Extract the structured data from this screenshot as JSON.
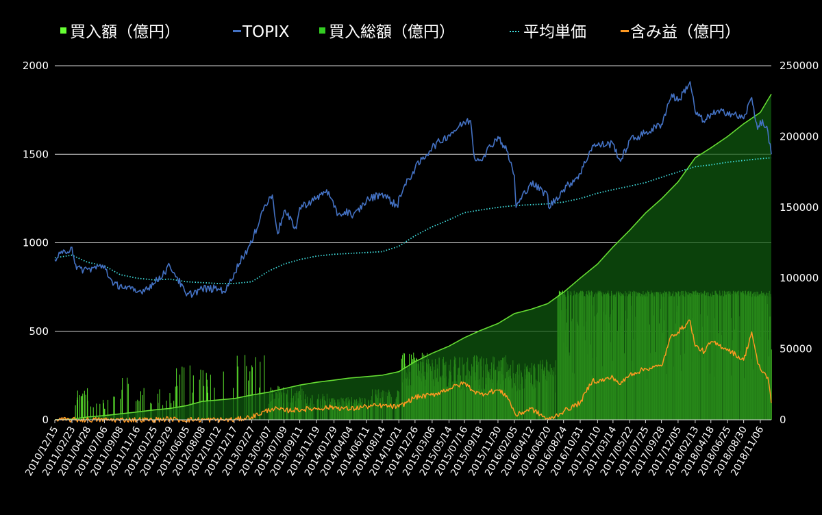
{
  "chart_data": {
    "type": "bar+line+area",
    "legend_position": "top",
    "grid": true,
    "legend": [
      {
        "key": "daily",
        "label": "買入額（億円）",
        "marker": "square",
        "color": "#66ff33"
      },
      {
        "key": "topix",
        "label": "TOPIX",
        "marker": "dash",
        "color": "#4472c4"
      },
      {
        "key": "total",
        "label": "買入総額（億円）",
        "marker": "square",
        "color": "#33cc22"
      },
      {
        "key": "avg",
        "label": "平均単価",
        "marker": "dots",
        "color": "#40e0e0"
      },
      {
        "key": "gain",
        "label": "含み益（億円）",
        "marker": "dash",
        "color": "#ff9922"
      }
    ],
    "y_left": {
      "min": 0,
      "max": 2000,
      "ticks": [
        "0",
        "500",
        "1000",
        "1500",
        "2000"
      ]
    },
    "y_right": {
      "min": 0,
      "max": 250000,
      "ticks": [
        "0",
        "50000",
        "100000",
        "150000",
        "200000",
        "250000"
      ]
    },
    "x_range": [
      "2010/12/15",
      "2018/12/21"
    ],
    "x_ticks": [
      "2010/12/15",
      "2011/02/23",
      "2011/04/28",
      "2011/07/06",
      "2011/09/08",
      "2011/11/16",
      "2012/01/25",
      "2012/03/29",
      "2012/06/05",
      "2012/08/08",
      "2012/10/12",
      "2012/12/17",
      "2013/02/27",
      "2013/05/07",
      "2013/07/09",
      "2013/09/11",
      "2013/11/19",
      "2014/01/29",
      "2014/04/04",
      "2014/06/11",
      "2014/08/14",
      "2014/10/21",
      "2014/12/26",
      "2015/03/06",
      "2015/05/14",
      "2015/07/16",
      "2015/09/18",
      "2015/11/30",
      "2016/02/05",
      "2016/04/12",
      "2016/06/20",
      "2016/08/24",
      "2016/10/31",
      "2017/01/10",
      "2017/03/14",
      "2017/05/22",
      "2017/07/25",
      "2017/09/28",
      "2017/12/05",
      "2018/02/13",
      "2018/04/18",
      "2018/06/25",
      "2018/08/30",
      "2018/11/06"
    ],
    "topix": [
      [
        "2010/12/15",
        905
      ],
      [
        "2011/01/15",
        940
      ],
      [
        "2011/02/23",
        975
      ],
      [
        "2011/03/14",
        850
      ],
      [
        "2011/04/28",
        850
      ],
      [
        "2011/07/06",
        870
      ],
      [
        "2011/08/10",
        760
      ],
      [
        "2011/09/08",
        760
      ],
      [
        "2011/11/16",
        720
      ],
      [
        "2011/12/20",
        740
      ],
      [
        "2012/01/25",
        770
      ],
      [
        "2012/03/29",
        870
      ],
      [
        "2012/04/30",
        800
      ],
      [
        "2012/06/05",
        700
      ],
      [
        "2012/08/08",
        740
      ],
      [
        "2012/10/12",
        740
      ],
      [
        "2012/11/14",
        730
      ],
      [
        "2012/12/17",
        830
      ],
      [
        "2013/01/20",
        920
      ],
      [
        "2013/02/27",
        1000
      ],
      [
        "2013/04/10",
        1180
      ],
      [
        "2013/05/22",
        1270
      ],
      [
        "2013/06/13",
        1050
      ],
      [
        "2013/07/09",
        1180
      ],
      [
        "2013/08/28",
        1080
      ],
      [
        "2013/09/11",
        1200
      ],
      [
        "2013/11/19",
        1250
      ],
      [
        "2013/12/30",
        1300
      ],
      [
        "2014/01/29",
        1200
      ],
      [
        "2014/02/15",
        1160
      ],
      [
        "2014/04/04",
        1180
      ],
      [
        "2014/04/14",
        1140
      ],
      [
        "2014/06/11",
        1240
      ],
      [
        "2014/08/14",
        1280
      ],
      [
        "2014/10/17",
        1200
      ],
      [
        "2014/10/21",
        1260
      ],
      [
        "2014/12/26",
        1420
      ],
      [
        "2015/03/06",
        1540
      ],
      [
        "2015/05/14",
        1610
      ],
      [
        "2015/07/16",
        1680
      ],
      [
        "2015/08/10",
        1690
      ],
      [
        "2015/08/26",
        1480
      ],
      [
        "2015/09/18",
        1470
      ],
      [
        "2015/11/30",
        1600
      ],
      [
        "2016/01/05",
        1520
      ],
      [
        "2016/02/05",
        1380
      ],
      [
        "2016/02/12",
        1200
      ],
      [
        "2016/04/12",
        1340
      ],
      [
        "2016/06/20",
        1270
      ],
      [
        "2016/06/24",
        1200
      ],
      [
        "2016/08/24",
        1300
      ],
      [
        "2016/10/31",
        1390
      ],
      [
        "2016/12/20",
        1550
      ],
      [
        "2017/01/10",
        1550
      ],
      [
        "2017/03/14",
        1560
      ],
      [
        "2017/04/14",
        1460
      ],
      [
        "2017/05/22",
        1580
      ],
      [
        "2017/07/25",
        1620
      ],
      [
        "2017/09/28",
        1670
      ],
      [
        "2017/11/09",
        1840
      ],
      [
        "2017/12/05",
        1800
      ],
      [
        "2018/01/23",
        1910
      ],
      [
        "2018/02/13",
        1740
      ],
      [
        "2018/03/23",
        1680
      ],
      [
        "2018/04/18",
        1730
      ],
      [
        "2018/06/25",
        1740
      ],
      [
        "2018/08/30",
        1700
      ],
      [
        "2018/10/02",
        1820
      ],
      [
        "2018/10/26",
        1640
      ],
      [
        "2018/11/06",
        1690
      ],
      [
        "2018/12/07",
        1630
      ],
      [
        "2018/12/21",
        1500
      ]
    ],
    "avg_price": [
      [
        "2010/12/15",
        915
      ],
      [
        "2011/02/23",
        930
      ],
      [
        "2011/04/28",
        890
      ],
      [
        "2011/07/06",
        870
      ],
      [
        "2011/09/08",
        820
      ],
      [
        "2011/11/16",
        800
      ],
      [
        "2012/01/25",
        790
      ],
      [
        "2012/03/29",
        795
      ],
      [
        "2012/06/05",
        780
      ],
      [
        "2012/08/08",
        775
      ],
      [
        "2012/10/12",
        770
      ],
      [
        "2012/12/17",
        770
      ],
      [
        "2013/02/27",
        780
      ],
      [
        "2013/05/07",
        840
      ],
      [
        "2013/07/09",
        880
      ],
      [
        "2013/09/11",
        905
      ],
      [
        "2013/11/19",
        925
      ],
      [
        "2014/01/29",
        935
      ],
      [
        "2014/04/04",
        940
      ],
      [
        "2014/06/11",
        945
      ],
      [
        "2014/08/14",
        950
      ],
      [
        "2014/10/21",
        980
      ],
      [
        "2014/12/26",
        1040
      ],
      [
        "2015/03/06",
        1090
      ],
      [
        "2015/05/14",
        1130
      ],
      [
        "2015/07/16",
        1170
      ],
      [
        "2015/09/18",
        1185
      ],
      [
        "2015/11/30",
        1200
      ],
      [
        "2016/02/05",
        1210
      ],
      [
        "2016/04/12",
        1215
      ],
      [
        "2016/06/20",
        1220
      ],
      [
        "2016/08/24",
        1230
      ],
      [
        "2016/10/31",
        1250
      ],
      [
        "2017/01/10",
        1280
      ],
      [
        "2017/03/14",
        1300
      ],
      [
        "2017/05/22",
        1320
      ],
      [
        "2017/07/25",
        1340
      ],
      [
        "2017/09/28",
        1370
      ],
      [
        "2017/12/05",
        1400
      ],
      [
        "2018/02/13",
        1430
      ],
      [
        "2018/04/18",
        1440
      ],
      [
        "2018/06/25",
        1455
      ],
      [
        "2018/08/30",
        1465
      ],
      [
        "2018/11/06",
        1475
      ],
      [
        "2018/12/21",
        1480
      ]
    ],
    "total_purchases": [
      [
        "2010/12/15",
        0
      ],
      [
        "2011/02/23",
        500
      ],
      [
        "2011/04/28",
        2000
      ],
      [
        "2011/07/06",
        3000
      ],
      [
        "2011/09/08",
        4200
      ],
      [
        "2011/11/16",
        5500
      ],
      [
        "2012/01/25",
        7000
      ],
      [
        "2012/03/29",
        8000
      ],
      [
        "2012/06/05",
        10000
      ],
      [
        "2012/08/08",
        13000
      ],
      [
        "2012/10/12",
        14000
      ],
      [
        "2012/12/17",
        15000
      ],
      [
        "2013/02/27",
        17500
      ],
      [
        "2013/05/07",
        19500
      ],
      [
        "2013/07/09",
        22000
      ],
      [
        "2013/09/11",
        24500
      ],
      [
        "2013/11/19",
        26500
      ],
      [
        "2014/01/29",
        28000
      ],
      [
        "2014/04/04",
        29500
      ],
      [
        "2014/06/11",
        30500
      ],
      [
        "2014/08/14",
        31500
      ],
      [
        "2014/10/21",
        34000
      ],
      [
        "2014/12/26",
        41000
      ],
      [
        "2015/03/06",
        47000
      ],
      [
        "2015/05/14",
        52000
      ],
      [
        "2015/07/16",
        58000
      ],
      [
        "2015/09/18",
        63000
      ],
      [
        "2015/11/30",
        68000
      ],
      [
        "2016/02/05",
        75000
      ],
      [
        "2016/04/12",
        78000
      ],
      [
        "2016/06/20",
        82000
      ],
      [
        "2016/08/24",
        90000
      ],
      [
        "2016/10/31",
        100000
      ],
      [
        "2017/01/10",
        110000
      ],
      [
        "2017/03/14",
        122000
      ],
      [
        "2017/05/22",
        134000
      ],
      [
        "2017/07/25",
        146000
      ],
      [
        "2017/09/28",
        156000
      ],
      [
        "2017/12/05",
        168000
      ],
      [
        "2018/02/13",
        185000
      ],
      [
        "2018/04/18",
        192000
      ],
      [
        "2018/06/25",
        200000
      ],
      [
        "2018/08/30",
        209000
      ],
      [
        "2018/11/06",
        217000
      ],
      [
        "2018/12/21",
        230000
      ]
    ],
    "unrealized_gain": [
      [
        "2010/12/15",
        0
      ],
      [
        "2012/01/25",
        0
      ],
      [
        "2012/03/29",
        600
      ],
      [
        "2012/05/01",
        0
      ],
      [
        "2012/12/17",
        0
      ],
      [
        "2013/02/27",
        2000
      ],
      [
        "2013/05/22",
        8000
      ],
      [
        "2013/07/09",
        6500
      ],
      [
        "2013/11/19",
        8000
      ],
      [
        "2014/01/29",
        9000
      ],
      [
        "2014/04/04",
        7500
      ],
      [
        "2014/06/11",
        9500
      ],
      [
        "2014/08/14",
        10000
      ],
      [
        "2014/10/21",
        9000
      ],
      [
        "2014/12/26",
        16000
      ],
      [
        "2015/03/06",
        17500
      ],
      [
        "2015/05/14",
        22000
      ],
      [
        "2015/07/16",
        26000
      ],
      [
        "2015/08/26",
        20000
      ],
      [
        "2015/09/18",
        18000
      ],
      [
        "2015/11/30",
        21000
      ],
      [
        "2016/01/05",
        17000
      ],
      [
        "2016/02/12",
        3000
      ],
      [
        "2016/04/12",
        8000
      ],
      [
        "2016/06/24",
        0
      ],
      [
        "2016/08/24",
        6000
      ],
      [
        "2016/10/31",
        12000
      ],
      [
        "2016/12/20",
        28000
      ],
      [
        "2017/01/10",
        27000
      ],
      [
        "2017/03/14",
        30000
      ],
      [
        "2017/04/14",
        25000
      ],
      [
        "2017/05/22",
        32000
      ],
      [
        "2017/07/25",
        36000
      ],
      [
        "2017/09/28",
        38000
      ],
      [
        "2017/11/09",
        60000
      ],
      [
        "2017/12/05",
        62000
      ],
      [
        "2018/01/23",
        70000
      ],
      [
        "2018/02/13",
        52000
      ],
      [
        "2018/03/23",
        48000
      ],
      [
        "2018/04/18",
        55000
      ],
      [
        "2018/06/25",
        50000
      ],
      [
        "2018/08/30",
        42000
      ],
      [
        "2018/10/02",
        62000
      ],
      [
        "2018/10/26",
        40000
      ],
      [
        "2018/11/06",
        36000
      ],
      [
        "2018/12/07",
        30000
      ],
      [
        "2018/12/21",
        12000
      ]
    ],
    "daily_purchase_segments": [
      {
        "from": "2010/12/15",
        "to": "2011/03/10",
        "max": 140,
        "density": 0.08
      },
      {
        "from": "2011/03/14",
        "to": "2011/05/01",
        "max": 185,
        "density": 0.35
      },
      {
        "from": "2011/05/01",
        "to": "2011/08/01",
        "max": 120,
        "density": 0.15
      },
      {
        "from": "2011/08/01",
        "to": "2011/10/15",
        "max": 250,
        "density": 0.28
      },
      {
        "from": "2011/10/15",
        "to": "2012/02/10",
        "max": 180,
        "density": 0.12
      },
      {
        "from": "2012/02/10",
        "to": "2012/04/20",
        "max": 180,
        "density": 0.08
      },
      {
        "from": "2012/04/20",
        "to": "2012/06/20",
        "max": 395,
        "density": 0.2
      },
      {
        "from": "2012/06/20",
        "to": "2012/12/25",
        "max": 290,
        "density": 0.1
      },
      {
        "from": "2012/12/25",
        "to": "2013/05/01",
        "max": 370,
        "density": 0.18
      },
      {
        "from": "2013/05/01",
        "to": "2013/10/01",
        "max": 200,
        "density": 0.4
      },
      {
        "from": "2013/10/01",
        "to": "2014/01/20",
        "max": 150,
        "density": 0.45
      },
      {
        "from": "2014/01/20",
        "to": "2014/07/01",
        "max": 130,
        "density": 0.7
      },
      {
        "from": "2014/07/01",
        "to": "2014/10/25",
        "max": 180,
        "density": 0.4
      },
      {
        "from": "2014/10/31",
        "to": "2015/03/01",
        "max": 380,
        "density": 0.9
      },
      {
        "from": "2015/03/01",
        "to": "2015/08/01",
        "max": 360,
        "density": 0.85
      },
      {
        "from": "2015/08/01",
        "to": "2016/01/10",
        "max": 370,
        "density": 0.9
      },
      {
        "from": "2016/01/10",
        "to": "2016/07/25",
        "max": 340,
        "density": 0.75
      },
      {
        "from": "2016/07/29",
        "to": "2018/12/21",
        "max": 730,
        "density": 0.95
      }
    ]
  }
}
